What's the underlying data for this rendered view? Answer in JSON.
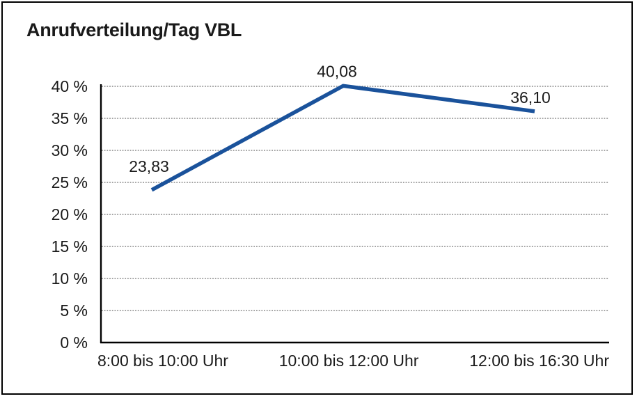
{
  "frame": {
    "background": "#ffffff",
    "border_color": "#000000"
  },
  "chart_data": {
    "type": "line",
    "title": "Anrufverteilung/Tag VBL",
    "categories": [
      "8:00 bis 10:00 Uhr",
      "10:00 bis 12:00 Uhr",
      "12:00 bis 16:30 Uhr"
    ],
    "values": [
      23.83,
      40.08,
      36.1
    ],
    "data_labels": [
      "23,83",
      "40,08",
      "36,10"
    ],
    "y_ticks": [
      {
        "value": 0,
        "label": "0 %"
      },
      {
        "value": 5,
        "label": "5 %"
      },
      {
        "value": 10,
        "label": "10 %"
      },
      {
        "value": 15,
        "label": "15 %"
      },
      {
        "value": 20,
        "label": "20 %"
      },
      {
        "value": 25,
        "label": "25 %"
      },
      {
        "value": 30,
        "label": "30 %"
      },
      {
        "value": 35,
        "label": "35 %"
      },
      {
        "value": 40,
        "label": "40 %"
      }
    ],
    "ylim": [
      0,
      40
    ],
    "xlabel": "",
    "ylabel": "",
    "legend": "none",
    "grid": "horizontal-dotted",
    "line_color": "#1A529B",
    "axis_color": "#000000",
    "gridline_color": "#6e6e6e",
    "text_color": "#1a1a1a"
  }
}
